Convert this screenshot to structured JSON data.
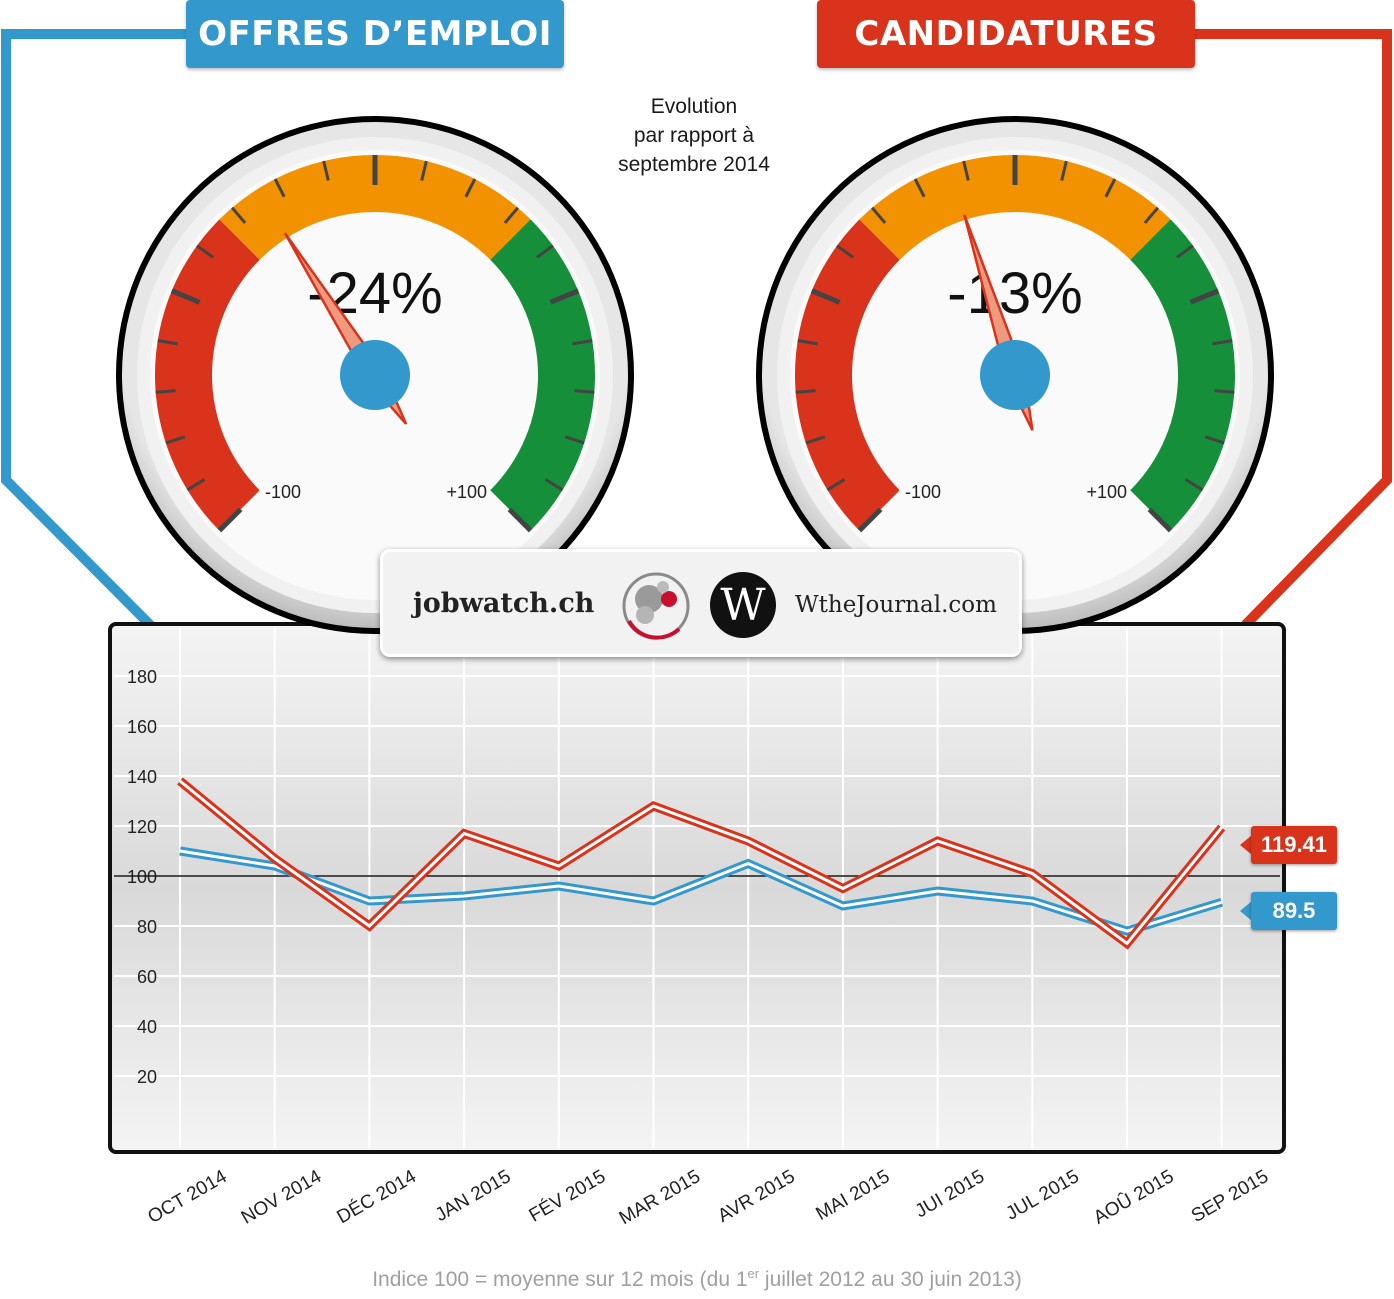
{
  "header": {
    "left_title": "OFFRES D’EMPLOI",
    "right_title": "CANDIDATURES",
    "subtitle_lines": [
      "Evolution",
      "par rapport à",
      "septembre 2014"
    ]
  },
  "gauges": [
    {
      "series": "OFFRES D’EMPLOI",
      "value": -24,
      "label": "-24%",
      "min_label": "-100",
      "max_label": "+100",
      "min": -100,
      "max": 100
    },
    {
      "series": "CANDIDATURES",
      "value": -13,
      "label": "-13%",
      "min_label": "-100",
      "max_label": "+100",
      "min": -100,
      "max": 100
    }
  ],
  "logos": {
    "left": "jobwatch.ch",
    "right": "WtheJournal.com",
    "right_mark": "W"
  },
  "badges": {
    "red": "119.41",
    "blue": "89.5"
  },
  "footnote": {
    "before": "Indice 100 = moyenne sur 12 mois (du 1",
    "sup": "er",
    "after": " juillet 2012 au 30 juin 2013)"
  },
  "colors": {
    "blue": "#3399cc",
    "red": "#d9331c",
    "orange": "#f39200",
    "green": "#168f3a"
  },
  "chart_data": {
    "type": "line",
    "categories": [
      "OCT 2014",
      "NOV 2014",
      "DÉC 2014",
      "JAN 2015",
      "FÉV 2015",
      "MAR 2015",
      "AVR 2015",
      "MAI 2015",
      "JUI 2015",
      "JUL 2015",
      "AOÛ 2015",
      "SEP 2015"
    ],
    "series": [
      {
        "name": "OFFRES D’EMPLOI",
        "color": "#3399cc",
        "values": [
          110,
          104,
          90,
          92,
          96,
          90,
          105,
          88,
          94,
          90,
          78,
          89.5
        ]
      },
      {
        "name": "CANDIDATURES",
        "color": "#d9331c",
        "values": [
          138,
          107,
          80,
          117,
          104,
          128,
          114,
          95,
          114,
          101,
          73,
          119.41
        ]
      }
    ],
    "yticks": [
      20,
      40,
      60,
      80,
      100,
      120,
      140,
      160,
      180
    ],
    "ylim": [
      0,
      200
    ],
    "reference_line": 100,
    "grid": true
  }
}
